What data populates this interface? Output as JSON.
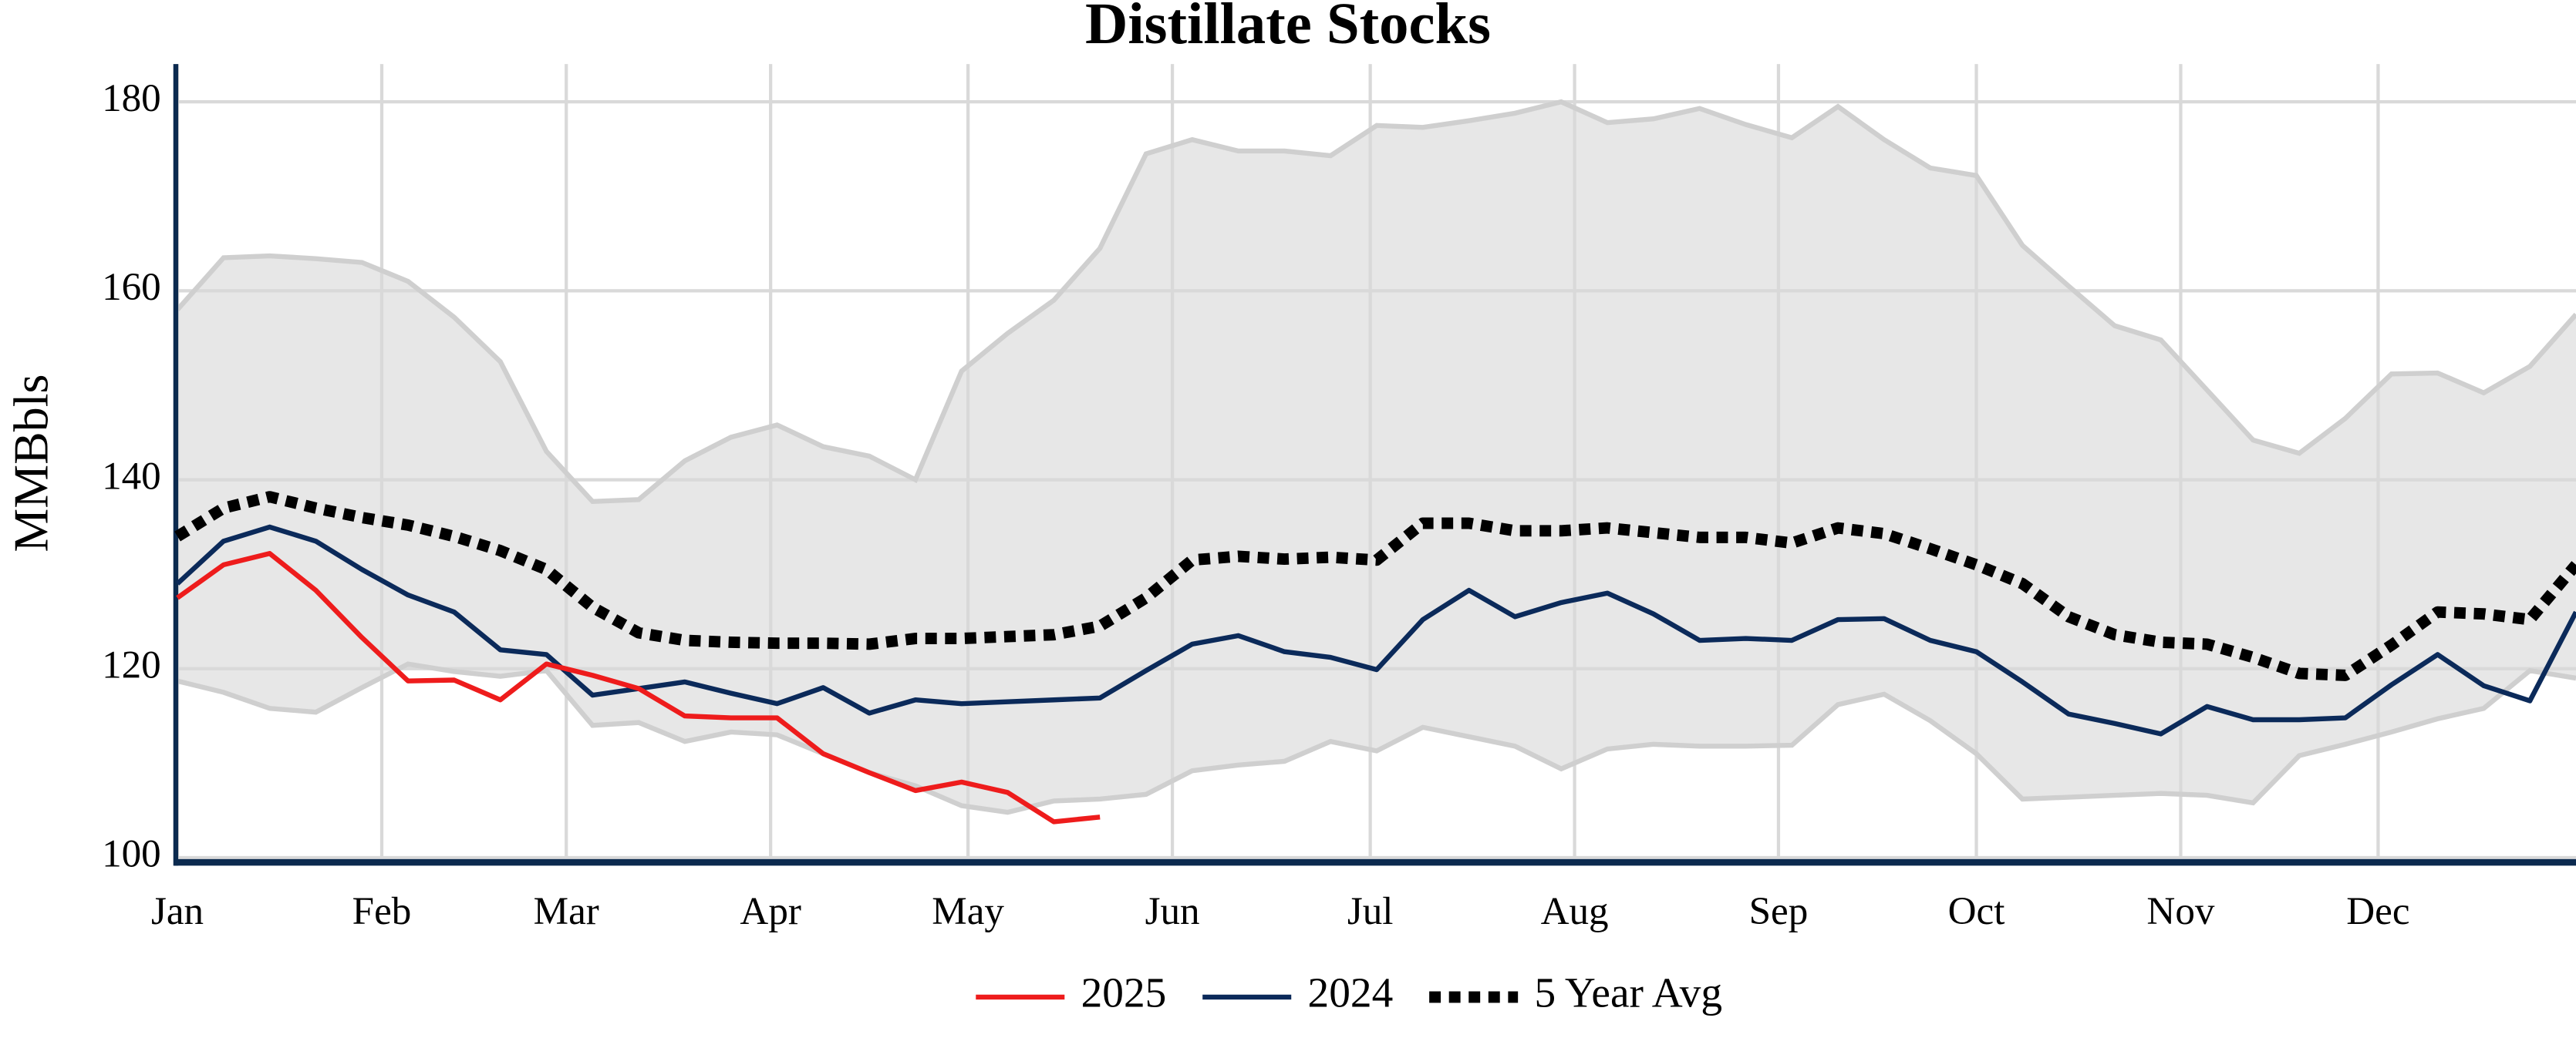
{
  "chart_data": {
    "type": "line",
    "title": "Distillate Stocks",
    "y_label": "MMBbls",
    "x": [
      1,
      2,
      3,
      4,
      5,
      6,
      7,
      8,
      9,
      10,
      11,
      12,
      13,
      14,
      15,
      16,
      17,
      18,
      19,
      20,
      21,
      22,
      23,
      24,
      25,
      26,
      27,
      28,
      29,
      30,
      31,
      32,
      33,
      34,
      35,
      36,
      37,
      38,
      39,
      40,
      41,
      42,
      43,
      44,
      45,
      46,
      47,
      48,
      49,
      50,
      51,
      52,
      53
    ],
    "xlim": [
      1,
      53
    ],
    "xticks": [
      {
        "value": 1,
        "label": "Jan"
      },
      {
        "value": 5.43,
        "label": "Feb"
      },
      {
        "value": 9.43,
        "label": "Mar"
      },
      {
        "value": 13.86,
        "label": "Apr"
      },
      {
        "value": 18.14,
        "label": "May"
      },
      {
        "value": 22.57,
        "label": "Jun"
      },
      {
        "value": 26.86,
        "label": "Jul"
      },
      {
        "value": 31.29,
        "label": "Aug"
      },
      {
        "value": 35.71,
        "label": "Sep"
      },
      {
        "value": 40,
        "label": "Oct"
      },
      {
        "value": 44.43,
        "label": "Nov"
      },
      {
        "value": 48.71,
        "label": "Dec"
      }
    ],
    "ylim": [
      99.5,
      184
    ],
    "yticks": [
      100,
      120,
      140,
      160,
      180
    ],
    "grid": true,
    "grid_color": "#d9d9d9",
    "axis_color": "#0b2a4f",
    "legend": "bottom",
    "range_band": {
      "color": "#e7e7e7",
      "edge_color": "#cfcfcf",
      "upper": [
        158,
        163.5,
        163.7,
        163.4,
        163,
        161,
        157.2,
        152.5,
        143,
        137.7,
        137.9,
        142,
        144.5,
        145.8,
        143.5,
        142.5,
        140,
        151.5,
        155.5,
        159,
        164.5,
        174.5,
        176,
        174.8,
        174.8,
        174.3,
        177.5,
        177.3,
        178,
        178.8,
        180,
        177.8,
        178.2,
        179.3,
        177.6,
        176.2,
        179.5,
        176,
        173,
        172.2,
        164.8,
        160.5,
        156.3,
        154.8,
        149.5,
        144.2,
        142.8,
        146.5,
        151.2,
        151.3,
        149.2,
        152,
        157.5
      ],
      "lower": [
        118.7,
        117.5,
        115.8,
        115.4,
        118,
        120.5,
        119.7,
        119.2,
        119.8,
        114,
        114.3,
        112.3,
        113.3,
        113,
        111,
        109,
        107.6,
        105.5,
        104.8,
        106,
        106.2,
        106.7,
        109.2,
        109.8,
        110.2,
        112.3,
        111.3,
        113.8,
        112.8,
        111.8,
        109.4,
        111.5,
        112,
        111.8,
        111.8,
        111.9,
        116.2,
        117.3,
        114.5,
        111,
        106.2,
        106.4,
        106.6,
        106.8,
        106.6,
        105.8,
        110.8,
        112,
        113.3,
        114.7,
        115.8,
        119.8,
        119
      ]
    },
    "series": [
      {
        "name": "2025",
        "color": "#ee1c1c",
        "dashed": false,
        "values": [
          127.5,
          131,
          132.2,
          128.3,
          123.3,
          118.7,
          118.8,
          116.7,
          120.5,
          119.3,
          117.9,
          115,
          114.8,
          114.8,
          111,
          109,
          107.1,
          108,
          106.9,
          103.8,
          104.3,
          null,
          null,
          null,
          null,
          null,
          null,
          null,
          null,
          null,
          null,
          null,
          null,
          null,
          null,
          null,
          null,
          null,
          null,
          null,
          null,
          null,
          null,
          null,
          null,
          null,
          null,
          null,
          null,
          null,
          null,
          null,
          null
        ]
      },
      {
        "name": "2024",
        "color": "#0b2a5a",
        "dashed": false,
        "values": [
          129,
          133.5,
          135,
          133.5,
          130.5,
          127.8,
          126,
          122,
          121.5,
          117.2,
          117.9,
          118.6,
          117.4,
          116.3,
          118,
          115.3,
          116.7,
          116.3,
          116.5,
          116.7,
          116.9,
          119.8,
          122.6,
          123.5,
          121.8,
          121.2,
          119.9,
          125.2,
          128.3,
          125.5,
          127,
          128,
          125.8,
          123,
          123.2,
          123,
          125.2,
          125.3,
          123,
          121.8,
          118.6,
          115.2,
          114.2,
          113.1,
          116,
          114.6,
          114.6,
          114.8,
          118.3,
          121.5,
          118.2,
          116.6,
          126
        ]
      },
      {
        "name": "5 Year Avg",
        "color": "#000000",
        "dashed": true,
        "values": [
          134,
          137,
          138.2,
          137,
          136,
          135.2,
          134,
          132.5,
          130.5,
          126.5,
          123.8,
          123,
          122.8,
          122.7,
          122.7,
          122.6,
          123.2,
          123.2,
          123.4,
          123.6,
          124.5,
          127.5,
          131.5,
          131.9,
          131.6,
          131.8,
          131.5,
          135.4,
          135.4,
          134.6,
          134.6,
          134.9,
          134.4,
          133.9,
          133.9,
          133.3,
          134.9,
          134.3,
          132.7,
          131,
          129,
          125.5,
          123.6,
          122.8,
          122.6,
          121.2,
          119.5,
          119.3,
          122.5,
          126,
          125.8,
          125.2,
          131
        ]
      }
    ]
  }
}
